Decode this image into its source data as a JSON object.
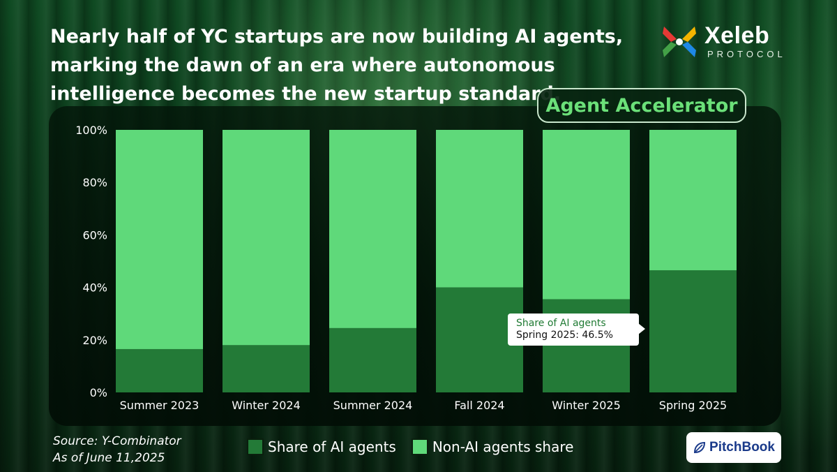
{
  "headline": "Nearly half of YC startups are now building AI agents, marking the dawn of an era where autonomous intelligence becomes the new startup standard.",
  "brand": {
    "name": "Xeleb",
    "sub": "PROTOCOL"
  },
  "badge": "Agent Accelerator",
  "tooltip": {
    "series": "Share of AI agents",
    "value": "Spring 2025: 46.5%"
  },
  "source": {
    "line1": "Source: Y-Combinator",
    "line2": "As of June 11,2025"
  },
  "pitchbook": "PitchBook",
  "colors": {
    "ai": "#237a37",
    "non_ai": "#5fd97a",
    "background": "#0b3a1a"
  },
  "chart_data": {
    "type": "bar",
    "stacked": true,
    "categories": [
      "Summer 2023",
      "Winter 2024",
      "Summer 2024",
      "Fall 2024",
      "Winter 2025",
      "Spring 2025"
    ],
    "series": [
      {
        "name": "Share of AI agents",
        "values": [
          16.5,
          18,
          24.5,
          40,
          35.5,
          46.5
        ]
      },
      {
        "name": "Non-AI agents share",
        "values": [
          83.5,
          82,
          75.5,
          60,
          64.5,
          53.5
        ]
      }
    ],
    "yticks": [
      "0%",
      "20%",
      "40%",
      "60%",
      "80%",
      "100%"
    ],
    "ylim": [
      0,
      100
    ],
    "legend": "bottom"
  }
}
